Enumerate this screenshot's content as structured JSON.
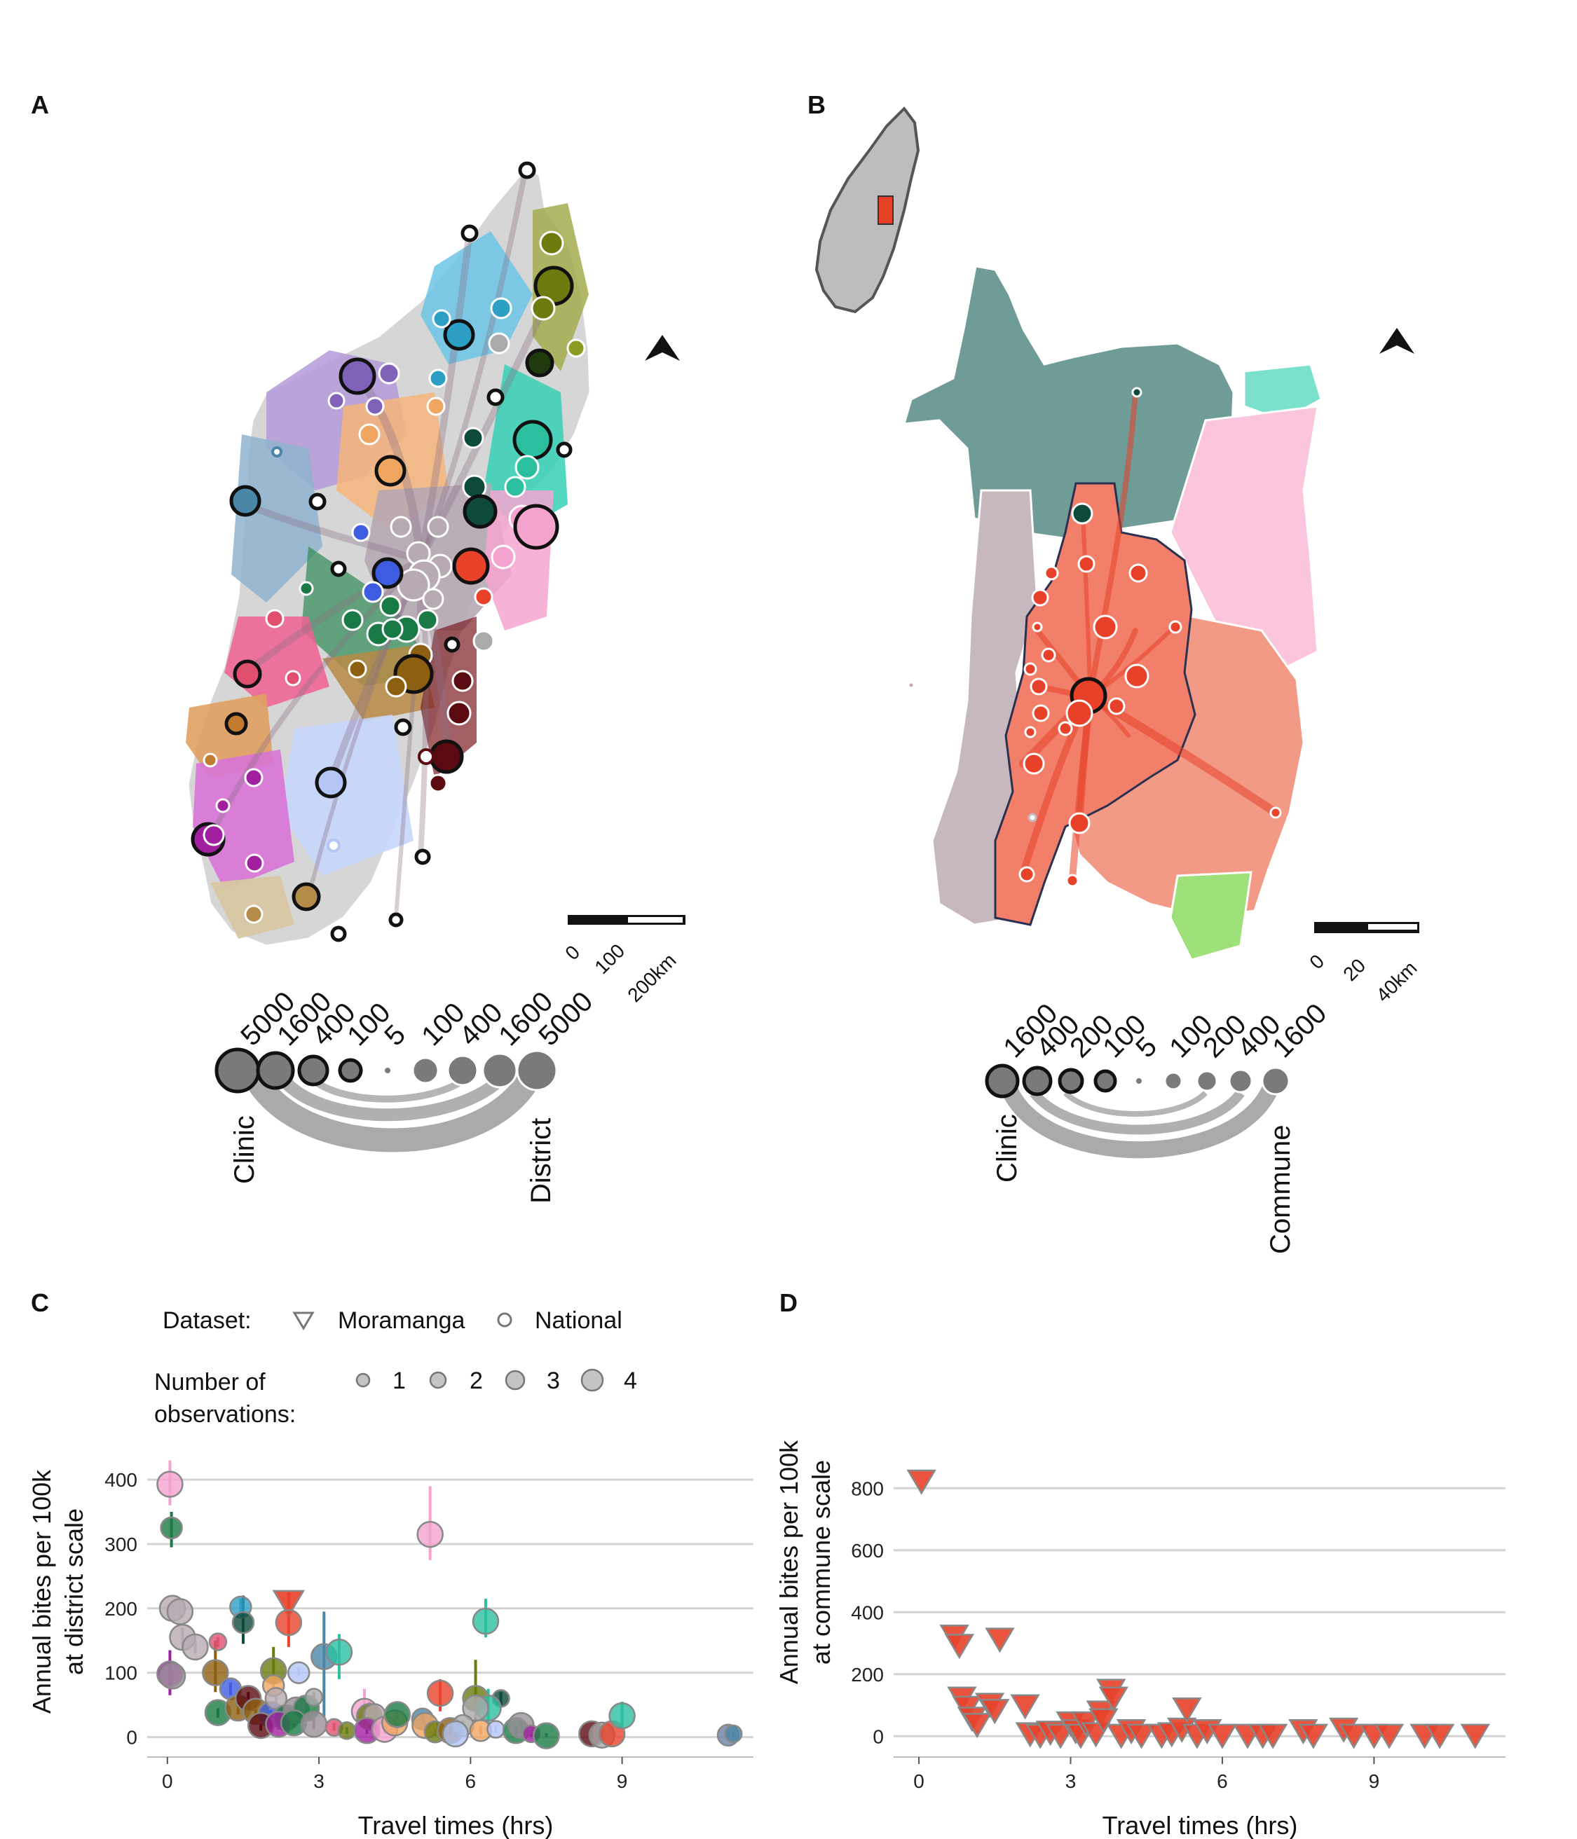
{
  "panels": {
    "a": "A",
    "b": "B",
    "c": "C",
    "d": "D"
  },
  "colors": {
    "moramanga_red": "#e8412a",
    "moramanga_fill": "#f29a86",
    "grid": "#d4d4d4",
    "land_grey": "#bdbdbd",
    "flow_grey": "#aaaaaa"
  },
  "map_a": {
    "scale_ticks": [
      "0",
      "100",
      "200km"
    ],
    "north_arrow": "north-arrow-icon",
    "legend": {
      "clinic_label": "Clinic",
      "district_label": "District",
      "clinic_sizes": [
        "5000",
        "1600",
        "400",
        "100"
      ],
      "district_sizes": [
        "5",
        "100",
        "400",
        "1600",
        "5000"
      ]
    }
  },
  "map_b": {
    "scale_ticks": [
      "0",
      "20",
      "40km"
    ],
    "north_arrow": "north-arrow-icon",
    "legend": {
      "clinic_label": "Clinic",
      "commune_label": "Commune",
      "clinic_sizes": [
        "1600",
        "400",
        "200",
        "100"
      ],
      "commune_sizes": [
        "5",
        "100",
        "200",
        "400",
        "1600"
      ]
    }
  },
  "legend_c": {
    "dataset_title": "Dataset:",
    "dataset_items": [
      {
        "label": "Moramanga",
        "shape": "triangle"
      },
      {
        "label": "National",
        "shape": "circle"
      }
    ],
    "obs_title_line1": "Number of",
    "obs_title_line2": "observations:",
    "obs_items": [
      "1",
      "2",
      "3",
      "4"
    ]
  },
  "chart_data": [
    {
      "type": "scatter",
      "panel": "C",
      "xlabel": "Travel times (hrs)",
      "ylabel_line1": "Annual bites per 100k",
      "ylabel_line2": "at district scale",
      "xlim": [
        -0.4,
        11.6
      ],
      "ylim": [
        -18,
        435
      ],
      "xticks": [
        0,
        3,
        6,
        9
      ],
      "yticks": [
        0,
        100,
        200,
        300,
        400
      ],
      "grid": "horizontal",
      "points": [
        {
          "x": 0.05,
          "y": 393,
          "lo": 360,
          "hi": 430,
          "n": 3,
          "color": "#f4a3cf",
          "shape": "circle"
        },
        {
          "x": 0.08,
          "y": 325,
          "lo": 295,
          "hi": 350,
          "n": 2,
          "color": "#1a7a45",
          "shape": "circle"
        },
        {
          "x": 5.2,
          "y": 315,
          "lo": 275,
          "hi": 390,
          "n": 3,
          "color": "#f4a3cf",
          "shape": "circle"
        },
        {
          "x": 0.1,
          "y": 200,
          "lo": 190,
          "hi": 210,
          "n": 3,
          "color": "#b7aab2",
          "shape": "circle"
        },
        {
          "x": 0.25,
          "y": 195,
          "lo": 185,
          "hi": 205,
          "n": 3,
          "color": "#b7aab2",
          "shape": "circle"
        },
        {
          "x": 0.3,
          "y": 155,
          "lo": 145,
          "hi": 170,
          "n": 3,
          "color": "#b7aab2",
          "shape": "circle"
        },
        {
          "x": 0.55,
          "y": 140,
          "lo": 130,
          "hi": 150,
          "n": 3,
          "color": "#b7aab2",
          "shape": "circle"
        },
        {
          "x": 0.05,
          "y": 98,
          "lo": 65,
          "hi": 135,
          "n": 3,
          "color": "#a020a0",
          "shape": "circle"
        },
        {
          "x": 0.1,
          "y": 95,
          "lo": 85,
          "hi": 105,
          "n": 3,
          "color": "#9b8f98",
          "shape": "circle"
        },
        {
          "x": 0.95,
          "y": 100,
          "lo": 70,
          "hi": 150,
          "n": 3,
          "color": "#8d5f10",
          "shape": "circle"
        },
        {
          "x": 1.0,
          "y": 148,
          "lo": 140,
          "hi": 155,
          "n": 1,
          "color": "#e0506e",
          "shape": "circle"
        },
        {
          "x": 1.45,
          "y": 202,
          "lo": 185,
          "hi": 215,
          "n": 2,
          "color": "#2e9fc4",
          "shape": "circle"
        },
        {
          "x": 1.5,
          "y": 178,
          "lo": 145,
          "hi": 220,
          "n": 2,
          "color": "#0e4a3c",
          "shape": "circle"
        },
        {
          "x": 2.4,
          "y": 210,
          "lo": 190,
          "hi": 225,
          "n": 4,
          "color": "#e8412a",
          "shape": "triangle"
        },
        {
          "x": 2.4,
          "y": 178,
          "lo": 140,
          "hi": 210,
          "n": 3,
          "color": "#e8412a",
          "shape": "circle"
        },
        {
          "x": 3.1,
          "y": 125,
          "lo": 30,
          "hi": 195,
          "n": 3,
          "color": "#4a86a8",
          "shape": "circle"
        },
        {
          "x": 3.4,
          "y": 132,
          "lo": 90,
          "hi": 160,
          "n": 3,
          "color": "#2bbfa0",
          "shape": "circle"
        },
        {
          "x": 2.1,
          "y": 103,
          "lo": 85,
          "hi": 140,
          "n": 3,
          "color": "#6c7a0e",
          "shape": "circle"
        },
        {
          "x": 2.6,
          "y": 100,
          "lo": 95,
          "hi": 108,
          "n": 2,
          "color": "#b3c6f6",
          "shape": "circle"
        },
        {
          "x": 2.1,
          "y": 80,
          "lo": 70,
          "hi": 95,
          "n": 2,
          "color": "#f0a560",
          "shape": "circle"
        },
        {
          "x": 1.25,
          "y": 75,
          "lo": 65,
          "hi": 85,
          "n": 2,
          "color": "#3e5ce0",
          "shape": "circle"
        },
        {
          "x": 6.3,
          "y": 180,
          "lo": 155,
          "hi": 215,
          "n": 3,
          "color": "#2bbfa0",
          "shape": "circle"
        },
        {
          "x": 5.4,
          "y": 68,
          "lo": 40,
          "hi": 90,
          "n": 3,
          "color": "#e8412a",
          "shape": "circle"
        },
        {
          "x": 6.1,
          "y": 60,
          "lo": 25,
          "hi": 120,
          "n": 3,
          "color": "#6c7a0e",
          "shape": "circle"
        },
        {
          "x": 6.6,
          "y": 60,
          "lo": 50,
          "hi": 70,
          "n": 1,
          "color": "#0e4a3c",
          "shape": "circle"
        },
        {
          "x": 6.35,
          "y": 45,
          "lo": 20,
          "hi": 75,
          "n": 3,
          "color": "#2bbfa0",
          "shape": "circle"
        },
        {
          "x": 6.1,
          "y": 45,
          "lo": 30,
          "hi": 60,
          "n": 3,
          "color": "#aaaaaa",
          "shape": "circle"
        },
        {
          "x": 3.9,
          "y": 40,
          "lo": 20,
          "hi": 75,
          "n": 3,
          "color": "#f4a3cf",
          "shape": "circle"
        },
        {
          "x": 4.0,
          "y": 32,
          "lo": 10,
          "hi": 55,
          "n": 3,
          "color": "#6c7a0e",
          "shape": "circle"
        },
        {
          "x": 4.1,
          "y": 35,
          "lo": 25,
          "hi": 45,
          "n": 2,
          "color": "#b7aab2",
          "shape": "circle"
        },
        {
          "x": 1.0,
          "y": 38,
          "lo": 30,
          "hi": 45,
          "n": 3,
          "color": "#1a7a45",
          "shape": "circle"
        },
        {
          "x": 1.4,
          "y": 45,
          "lo": 35,
          "hi": 55,
          "n": 3,
          "color": "#8d5f10",
          "shape": "circle"
        },
        {
          "x": 1.6,
          "y": 60,
          "lo": 50,
          "hi": 70,
          "n": 3,
          "color": "#5a0a10",
          "shape": "circle"
        },
        {
          "x": 1.75,
          "y": 40,
          "lo": 30,
          "hi": 50,
          "n": 3,
          "color": "#8d5f10",
          "shape": "circle"
        },
        {
          "x": 2.05,
          "y": 35,
          "lo": 28,
          "hi": 42,
          "n": 3,
          "color": "#3e5ce0",
          "shape": "circle"
        },
        {
          "x": 2.15,
          "y": 60,
          "lo": 52,
          "hi": 68,
          "n": 2,
          "color": "#b7aab2",
          "shape": "circle"
        },
        {
          "x": 2.35,
          "y": 30,
          "lo": 20,
          "hi": 40,
          "n": 3,
          "color": "#1a7a45",
          "shape": "circle"
        },
        {
          "x": 2.55,
          "y": 42,
          "lo": 35,
          "hi": 50,
          "n": 3,
          "color": "#9b8f98",
          "shape": "circle"
        },
        {
          "x": 2.75,
          "y": 45,
          "lo": 38,
          "hi": 52,
          "n": 3,
          "color": "#1a7a45",
          "shape": "circle"
        },
        {
          "x": 2.9,
          "y": 62,
          "lo": 55,
          "hi": 70,
          "n": 1,
          "color": "#aaaaaa",
          "shape": "circle"
        },
        {
          "x": 1.85,
          "y": 18,
          "lo": 10,
          "hi": 25,
          "n": 3,
          "color": "#5a0a10",
          "shape": "circle"
        },
        {
          "x": 2.2,
          "y": 20,
          "lo": 12,
          "hi": 28,
          "n": 3,
          "color": "#a020a0",
          "shape": "circle"
        },
        {
          "x": 2.5,
          "y": 22,
          "lo": 15,
          "hi": 30,
          "n": 3,
          "color": "#1a7a45",
          "shape": "circle"
        },
        {
          "x": 2.9,
          "y": 20,
          "lo": 12,
          "hi": 28,
          "n": 3,
          "color": "#9b8f98",
          "shape": "circle"
        },
        {
          "x": 3.3,
          "y": 15,
          "lo": 10,
          "hi": 22,
          "n": 1,
          "color": "#e0506e",
          "shape": "circle"
        },
        {
          "x": 3.55,
          "y": 10,
          "lo": 5,
          "hi": 15,
          "n": 1,
          "color": "#6c7a0e",
          "shape": "circle"
        },
        {
          "x": 3.95,
          "y": 10,
          "lo": 5,
          "hi": 15,
          "n": 3,
          "color": "#a020a0",
          "shape": "circle"
        },
        {
          "x": 4.3,
          "y": 12,
          "lo": 5,
          "hi": 18,
          "n": 3,
          "color": "#f4a3cf",
          "shape": "circle"
        },
        {
          "x": 4.5,
          "y": 22,
          "lo": 15,
          "hi": 30,
          "n": 3,
          "color": "#f0a560",
          "shape": "circle"
        },
        {
          "x": 4.55,
          "y": 35,
          "lo": 28,
          "hi": 42,
          "n": 3,
          "color": "#1a7a45",
          "shape": "circle"
        },
        {
          "x": 5.05,
          "y": 28,
          "lo": 20,
          "hi": 35,
          "n": 2,
          "color": "#4a86a8",
          "shape": "circle"
        },
        {
          "x": 5.1,
          "y": 18,
          "lo": 10,
          "hi": 25,
          "n": 3,
          "color": "#f0a560",
          "shape": "circle"
        },
        {
          "x": 5.3,
          "y": 8,
          "lo": 2,
          "hi": 14,
          "n": 2,
          "color": "#6c7a0e",
          "shape": "circle"
        },
        {
          "x": 5.6,
          "y": 10,
          "lo": 4,
          "hi": 16,
          "n": 3,
          "color": "#8d5f10",
          "shape": "circle"
        },
        {
          "x": 5.85,
          "y": 18,
          "lo": 10,
          "hi": 26,
          "n": 2,
          "color": "#aaaaaa",
          "shape": "circle"
        },
        {
          "x": 5.7,
          "y": 5,
          "lo": 0,
          "hi": 10,
          "n": 3,
          "color": "#b3c6f6",
          "shape": "circle"
        },
        {
          "x": 6.2,
          "y": 10,
          "lo": 4,
          "hi": 16,
          "n": 2,
          "color": "#f0a560",
          "shape": "circle"
        },
        {
          "x": 6.5,
          "y": 12,
          "lo": 6,
          "hi": 18,
          "n": 1,
          "color": "#b3c6f6",
          "shape": "circle"
        },
        {
          "x": 6.9,
          "y": 10,
          "lo": 4,
          "hi": 16,
          "n": 3,
          "color": "#1a7a45",
          "shape": "circle"
        },
        {
          "x": 7.0,
          "y": 18,
          "lo": 10,
          "hi": 25,
          "n": 3,
          "color": "#9b8f98",
          "shape": "circle"
        },
        {
          "x": 7.2,
          "y": 5,
          "lo": 0,
          "hi": 10,
          "n": 1,
          "color": "#a020a0",
          "shape": "circle"
        },
        {
          "x": 7.5,
          "y": 2,
          "lo": 0,
          "hi": 6,
          "n": 3,
          "color": "#1a7a45",
          "shape": "circle"
        },
        {
          "x": 8.4,
          "y": 5,
          "lo": 0,
          "hi": 10,
          "n": 3,
          "color": "#5a0a10",
          "shape": "circle"
        },
        {
          "x": 8.6,
          "y": 3,
          "lo": 0,
          "hi": 8,
          "n": 3,
          "color": "#aaaaaa",
          "shape": "circle"
        },
        {
          "x": 8.8,
          "y": 5,
          "lo": 0,
          "hi": 10,
          "n": 3,
          "color": "#e8412a",
          "shape": "circle"
        },
        {
          "x": 9.0,
          "y": 33,
          "lo": 15,
          "hi": 55,
          "n": 3,
          "color": "#2bbfa0",
          "shape": "circle"
        },
        {
          "x": 11.1,
          "y": 3,
          "lo": 0,
          "hi": 6,
          "n": 2,
          "color": "#6d82a8",
          "shape": "circle"
        },
        {
          "x": 11.2,
          "y": 5,
          "lo": 0,
          "hi": 8,
          "n": 1,
          "color": "#4a86a8",
          "shape": "circle"
        }
      ]
    },
    {
      "type": "scatter",
      "panel": "D",
      "xlabel": "Travel times (hrs)",
      "ylabel_line1": "Annual bites per 100k",
      "ylabel_line2": "at commune scale",
      "xlim": [
        -0.5,
        11.6
      ],
      "ylim": [
        -40,
        900
      ],
      "xticks": [
        0,
        3,
        6,
        9
      ],
      "yticks": [
        0,
        200,
        400,
        600,
        800
      ],
      "grid": "horizontal",
      "marker_color": "#e8412a",
      "shape": "triangle",
      "points": [
        {
          "x": 0.05,
          "y": 825
        },
        {
          "x": 0.7,
          "y": 325
        },
        {
          "x": 0.8,
          "y": 295
        },
        {
          "x": 1.6,
          "y": 315
        },
        {
          "x": 0.85,
          "y": 125
        },
        {
          "x": 0.95,
          "y": 95
        },
        {
          "x": 1.05,
          "y": 60
        },
        {
          "x": 1.15,
          "y": 40
        },
        {
          "x": 1.4,
          "y": 105
        },
        {
          "x": 1.5,
          "y": 85
        },
        {
          "x": 2.1,
          "y": 100
        },
        {
          "x": 2.2,
          "y": 10
        },
        {
          "x": 2.4,
          "y": 5
        },
        {
          "x": 2.6,
          "y": 15
        },
        {
          "x": 2.8,
          "y": 5
        },
        {
          "x": 3.0,
          "y": 45
        },
        {
          "x": 3.1,
          "y": 20
        },
        {
          "x": 3.2,
          "y": 5
        },
        {
          "x": 3.3,
          "y": 45
        },
        {
          "x": 3.5,
          "y": 10
        },
        {
          "x": 3.6,
          "y": 80
        },
        {
          "x": 3.65,
          "y": 55
        },
        {
          "x": 3.8,
          "y": 150
        },
        {
          "x": 3.85,
          "y": 125
        },
        {
          "x": 4.0,
          "y": 5
        },
        {
          "x": 4.2,
          "y": 20
        },
        {
          "x": 4.4,
          "y": 5
        },
        {
          "x": 4.8,
          "y": 5
        },
        {
          "x": 5.0,
          "y": 10
        },
        {
          "x": 5.2,
          "y": 25
        },
        {
          "x": 5.3,
          "y": 90
        },
        {
          "x": 5.5,
          "y": 5
        },
        {
          "x": 5.7,
          "y": 20
        },
        {
          "x": 6.0,
          "y": 5
        },
        {
          "x": 6.5,
          "y": 5
        },
        {
          "x": 6.8,
          "y": 5
        },
        {
          "x": 7.0,
          "y": 5
        },
        {
          "x": 7.6,
          "y": 20
        },
        {
          "x": 7.8,
          "y": 5
        },
        {
          "x": 8.4,
          "y": 25
        },
        {
          "x": 8.6,
          "y": 5
        },
        {
          "x": 9.0,
          "y": 5
        },
        {
          "x": 9.3,
          "y": 5
        },
        {
          "x": 10.0,
          "y": 5
        },
        {
          "x": 10.3,
          "y": 5
        },
        {
          "x": 11.0,
          "y": 5
        }
      ]
    }
  ]
}
